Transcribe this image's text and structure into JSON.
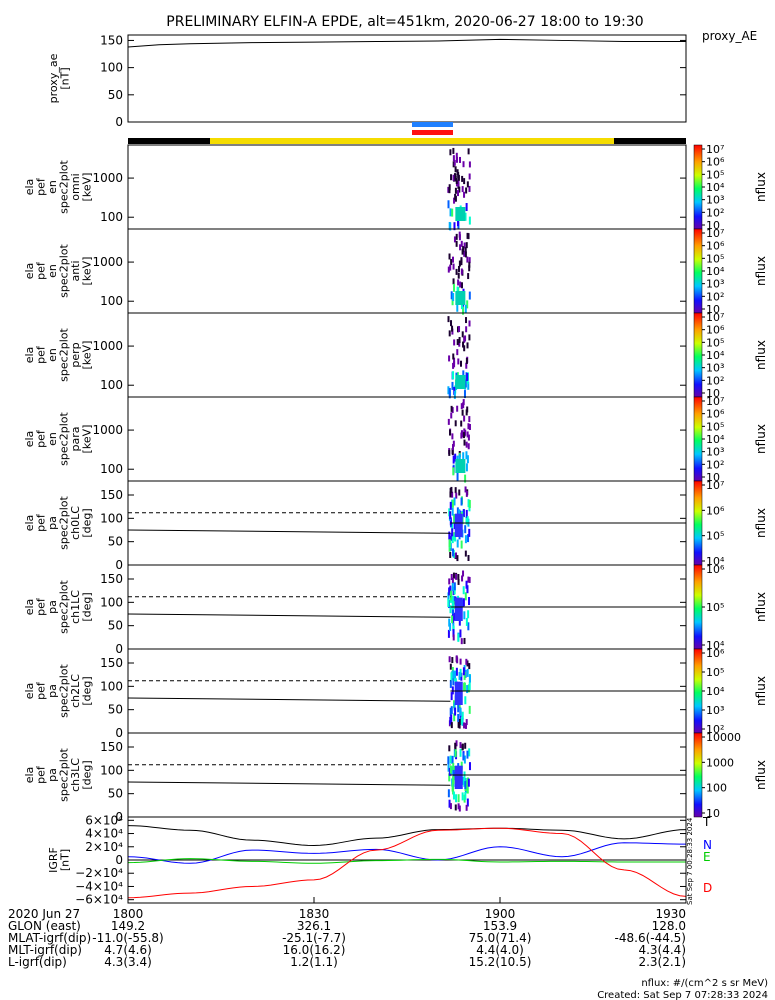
{
  "title": "PRELIMINARY ELFIN-A EPDE, alt=451km, 2020-06-27 18:00 to 19:30",
  "time_start": "2020-06-27 18:00",
  "time_end": "2020-06-27 19:30",
  "footer": {
    "units": "nflux: #/(cm^2 s sr MeV)",
    "created": "Created: Sat Sep  7 07:28:33 2024",
    "rot_stamp": "Sat Sep  7 00:28:33 2024"
  },
  "orbit_info": {
    "labels": [
      "2020 Jun 27",
      "GLON (east)",
      "MLAT-igrf(dip)",
      "MLT-igrf(dip)",
      "L-igrf(dip)"
    ],
    "ticks": [
      {
        "time": "1800",
        "glon": "149.2",
        "mlat": "-11.0(-55.8)",
        "mlt": "4.7(4.6)",
        "l": "4.3(3.4)"
      },
      {
        "time": "1830",
        "glon": "326.1",
        "mlat": "-25.1(-7.7)",
        "mlt": "16.0(16.2)",
        "l": "1.2(1.1)"
      },
      {
        "time": "1900",
        "glon": "153.9",
        "mlat": "75.0(71.4)",
        "mlt": "4.4(4.0)",
        "l": "15.2(10.5)"
      },
      {
        "time": "1930",
        "glon": "128.0",
        "mlat": "-48.6(-44.5)",
        "mlt": "4.3(4.4)",
        "l": "2.3(2.1)"
      }
    ]
  },
  "chart_data": [
    {
      "type": "line",
      "name": "proxy_AE",
      "ylabel": [
        "proxy_ae",
        "[nT]"
      ],
      "legend": "proxy_AE",
      "ylim": [
        0,
        160
      ],
      "yticks": [
        "0",
        "50",
        "100",
        "150"
      ],
      "x": [
        0,
        5,
        10,
        20,
        30,
        40,
        50,
        60,
        70,
        80,
        90
      ],
      "values": [
        138,
        142,
        144,
        146,
        147,
        148,
        149,
        152,
        150,
        148,
        148
      ]
    },
    {
      "type": "heatmap",
      "name": "omni",
      "ylabel": [
        "ela",
        "pef",
        "en",
        "spec2plot",
        "omni",
        "[keV]"
      ],
      "scale": "log",
      "ylim": [
        50,
        7000
      ],
      "yticks": [
        "100",
        "1000"
      ],
      "colorbar": {
        "label": "nflux",
        "ticks": [
          "10",
          "10²",
          "10³",
          "10⁴",
          "10⁵",
          "10⁶",
          "10⁷"
        ]
      }
    },
    {
      "type": "heatmap",
      "name": "anti",
      "ylabel": [
        "ela",
        "pef",
        "en",
        "spec2plot",
        "anti",
        "[keV]"
      ],
      "scale": "log",
      "ylim": [
        50,
        7000
      ],
      "yticks": [
        "100",
        "1000"
      ],
      "colorbar": {
        "label": "nflux",
        "ticks": [
          "10",
          "10²",
          "10³",
          "10⁴",
          "10⁵",
          "10⁶",
          "10⁷"
        ]
      }
    },
    {
      "type": "heatmap",
      "name": "perp",
      "ylabel": [
        "ela",
        "pef",
        "en",
        "spec2plot",
        "perp",
        "[keV]"
      ],
      "scale": "log",
      "ylim": [
        50,
        7000
      ],
      "yticks": [
        "100",
        "1000"
      ],
      "colorbar": {
        "label": "nflux",
        "ticks": [
          "10",
          "10²",
          "10³",
          "10⁴",
          "10⁵",
          "10⁶",
          "10⁷"
        ]
      }
    },
    {
      "type": "heatmap",
      "name": "para",
      "ylabel": [
        "ela",
        "pef",
        "en",
        "spec2plot",
        "para",
        "[keV]"
      ],
      "scale": "log",
      "ylim": [
        50,
        7000
      ],
      "yticks": [
        "100",
        "1000"
      ],
      "colorbar": {
        "label": "nflux",
        "ticks": [
          "10",
          "10²",
          "10³",
          "10⁴",
          "10⁵",
          "10⁶",
          "10⁷"
        ]
      }
    },
    {
      "type": "heatmap",
      "name": "ch0LC",
      "ylabel": [
        "ela",
        "pef",
        "pa",
        "spec2plot",
        "ch0LC",
        "[deg]"
      ],
      "ylim": [
        0,
        180
      ],
      "yticks": [
        "0",
        "50",
        "100",
        "150"
      ],
      "colorbar": {
        "label": "nflux",
        "ticks": [
          "10⁴",
          "10⁵",
          "10⁶",
          "10⁷"
        ]
      }
    },
    {
      "type": "heatmap",
      "name": "ch1LC",
      "ylabel": [
        "ela",
        "pef",
        "pa",
        "spec2plot",
        "ch1LC",
        "[deg]"
      ],
      "ylim": [
        0,
        180
      ],
      "yticks": [
        "0",
        "50",
        "100",
        "150"
      ],
      "colorbar": {
        "label": "nflux",
        "ticks": [
          "10⁴",
          "10⁵",
          "10⁶"
        ]
      }
    },
    {
      "type": "heatmap",
      "name": "ch2LC",
      "ylabel": [
        "ela",
        "pef",
        "pa",
        "spec2plot",
        "ch2LC",
        "[deg]"
      ],
      "ylim": [
        0,
        180
      ],
      "yticks": [
        "0",
        "50",
        "100",
        "150"
      ],
      "colorbar": {
        "label": "nflux",
        "ticks": [
          "10²",
          "10³",
          "10⁴",
          "10⁵",
          "10⁶"
        ]
      }
    },
    {
      "type": "heatmap",
      "name": "ch3LC",
      "ylabel": [
        "ela",
        "pef",
        "pa",
        "spec2plot",
        "ch3LC",
        "[deg]"
      ],
      "ylim": [
        0,
        180
      ],
      "yticks": [
        "0",
        "50",
        "100",
        "150"
      ],
      "colorbar": {
        "label": "nflux",
        "ticks": [
          "10",
          "100",
          "1000",
          "10000"
        ]
      }
    },
    {
      "type": "line",
      "name": "IGRF",
      "ylabel": [
        "IGRF",
        "[nT]"
      ],
      "ylim": [
        -65000,
        65000
      ],
      "yticks": [
        "−6×10⁴",
        "−4×10⁴",
        "−2×10⁴",
        "0",
        "2×10⁴",
        "4×10⁴",
        "6×10⁴"
      ],
      "x": [
        0,
        10,
        20,
        30,
        40,
        50,
        60,
        70,
        80,
        90
      ],
      "series": [
        {
          "name": "T",
          "color": "#000000",
          "values": [
            52000,
            45000,
            30000,
            22000,
            33000,
            46000,
            48000,
            45000,
            32000,
            46000
          ]
        },
        {
          "name": "N",
          "color": "#0000ff",
          "values": [
            5000,
            -5000,
            15000,
            10000,
            16000,
            0,
            20000,
            5000,
            26000,
            24000
          ]
        },
        {
          "name": "E",
          "color": "#00cc00",
          "values": [
            -4000,
            2000,
            -2000,
            -5000,
            -1000,
            1000,
            -3000,
            -2000,
            -3000,
            -3000
          ]
        },
        {
          "name": "D",
          "color": "#ff0000",
          "values": [
            -57000,
            -50000,
            -40000,
            -30000,
            15000,
            45000,
            48000,
            40000,
            -15000,
            -55000
          ]
        }
      ]
    }
  ]
}
